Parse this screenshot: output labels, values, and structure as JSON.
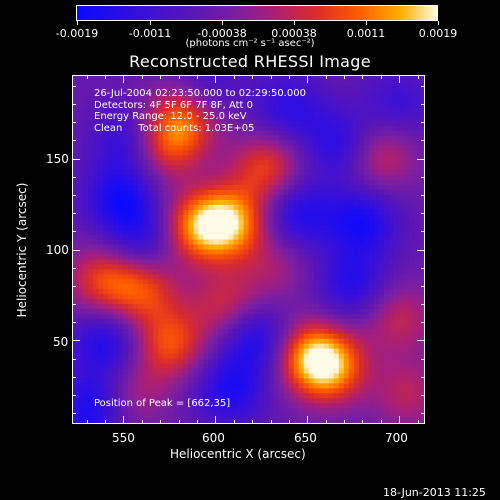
{
  "colorbar": {
    "tick_labels": [
      "-0.0019",
      "-0.0011",
      "-0.00038",
      "0.00038",
      "0.0011",
      "0.0019"
    ],
    "unit": "(photons cm⁻² s⁻¹ asec⁻²)",
    "colors": [
      "#0a0aff",
      "#5a16b6",
      "#a81f78",
      "#ff5a00",
      "#fffbe6"
    ]
  },
  "info": {
    "line1": "26-Jul-2004 02:23:50.000 to 02:29:50.000",
    "line2": "Detectors: 4F 5F 6F 7F 8F, Att 0",
    "line3": "Energy Range: 12.0 - 25.0 keV",
    "line4": "Clean     Total counts: 1.03E+05",
    "peak": "Position of Peak = [662,35]"
  },
  "timestamp": "18-Jun-2013 11:25",
  "chart_data": {
    "type": "heatmap",
    "title": "Reconstructed RHESSI Image",
    "xlabel": "Heliocentric X (arcsec)",
    "ylabel": "Heliocentric Y (arcsec)",
    "xlim": [
      522,
      714
    ],
    "ylim": [
      4,
      196
    ],
    "x_ticks": [
      "550",
      "600",
      "650",
      "700"
    ],
    "y_ticks": [
      "50",
      "100",
      "150"
    ],
    "clim": [
      -0.0019,
      0.0019
    ],
    "blobs": [
      {
        "x": 583,
        "y": 173,
        "v": 0.0014
      },
      {
        "x": 572,
        "y": 157,
        "v": 0.0012
      },
      {
        "x": 590,
        "y": 112,
        "v": 0.0016
      },
      {
        "x": 608,
        "y": 115,
        "v": 0.0019
      },
      {
        "x": 628,
        "y": 145,
        "v": 0.0013
      },
      {
        "x": 538,
        "y": 83,
        "v": 0.0012
      },
      {
        "x": 560,
        "y": 78,
        "v": 0.0013
      },
      {
        "x": 575,
        "y": 48,
        "v": 0.0014
      },
      {
        "x": 606,
        "y": 69,
        "v": 0.001
      },
      {
        "x": 650,
        "y": 42,
        "v": 0.0013
      },
      {
        "x": 662,
        "y": 35,
        "v": 0.0019
      },
      {
        "x": 690,
        "y": 152,
        "v": 0.001
      },
      {
        "x": 700,
        "y": 62,
        "v": 0.0009
      },
      {
        "x": 705,
        "y": 20,
        "v": 0.0008
      },
      {
        "x": 632,
        "y": 90,
        "v": 0.0006
      },
      {
        "x": 555,
        "y": 20,
        "v": 0.0007
      },
      {
        "x": 680,
        "y": 115,
        "v": -0.0012
      },
      {
        "x": 645,
        "y": 120,
        "v": -0.0011
      },
      {
        "x": 548,
        "y": 128,
        "v": -0.0012
      },
      {
        "x": 540,
        "y": 48,
        "v": -0.0011
      },
      {
        "x": 622,
        "y": 51,
        "v": -0.0012
      },
      {
        "x": 560,
        "y": 104,
        "v": -0.0009
      },
      {
        "x": 675,
        "y": 80,
        "v": -0.001
      },
      {
        "x": 640,
        "y": 178,
        "v": -0.0009
      },
      {
        "x": 608,
        "y": 22,
        "v": -0.0011
      },
      {
        "x": 532,
        "y": 12,
        "v": -0.0012
      },
      {
        "x": 700,
        "y": 180,
        "v": -0.0007
      },
      {
        "x": 595,
        "y": 190,
        "v": -0.0007
      },
      {
        "x": 668,
        "y": 158,
        "v": -0.001
      },
      {
        "x": 552,
        "y": 160,
        "v": -0.0009
      }
    ]
  }
}
